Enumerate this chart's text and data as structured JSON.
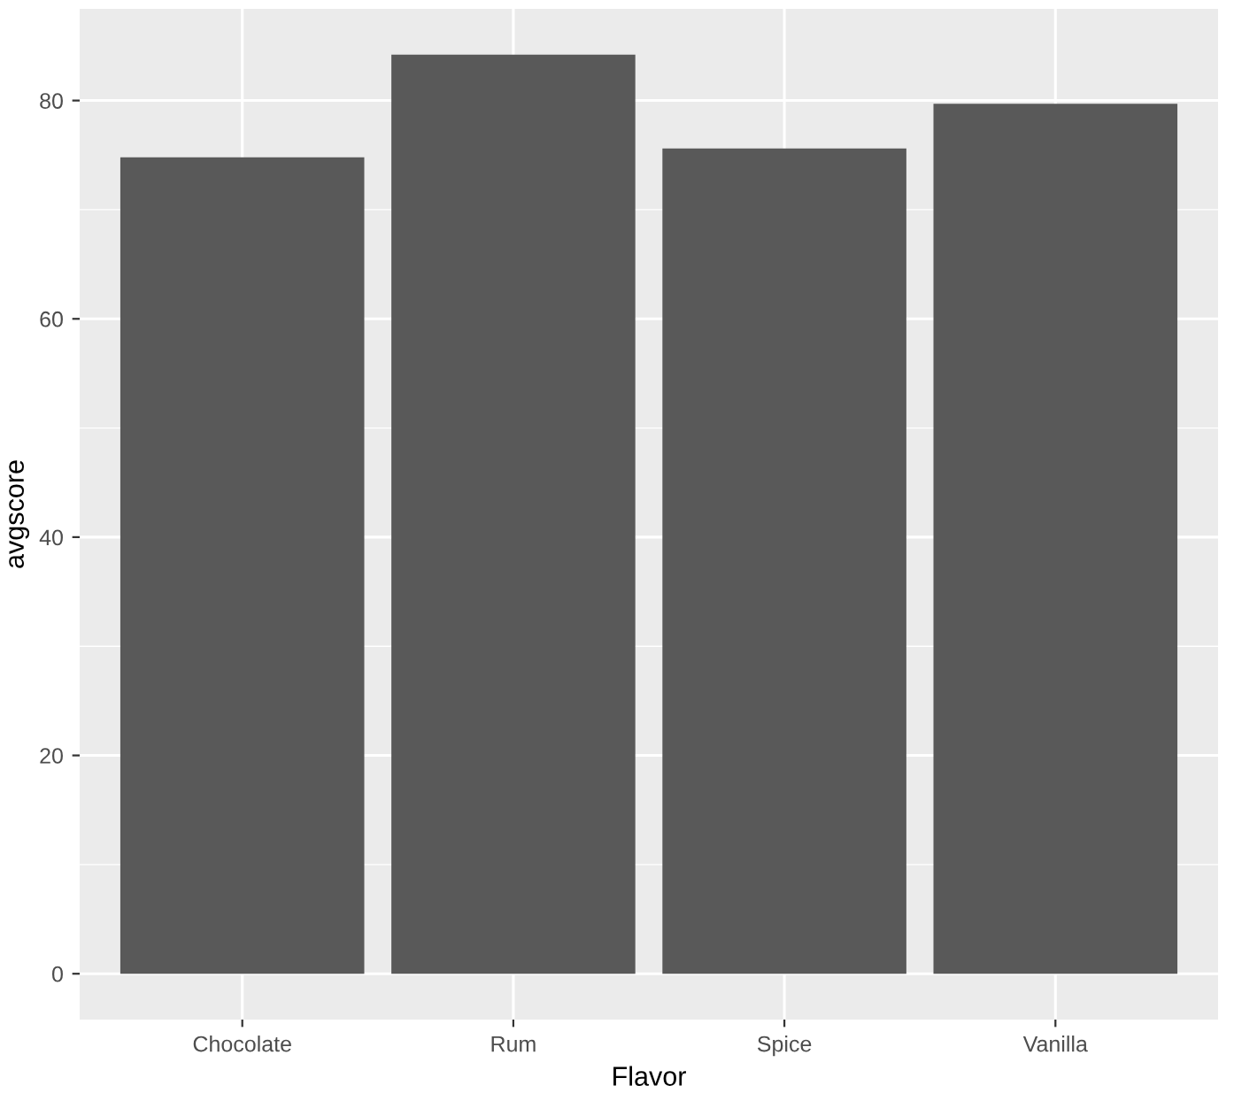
{
  "chart_data": {
    "type": "bar",
    "xlabel": "Flavor",
    "ylabel": "avgscore",
    "categories": [
      "Chocolate",
      "Rum",
      "Spice",
      "Vanilla"
    ],
    "values": [
      74.8,
      84.2,
      75.6,
      79.7
    ],
    "color": "#595959",
    "ylim": [
      -4.2,
      88.4
    ],
    "yticks": [
      0,
      20,
      40,
      60,
      80
    ],
    "grid": true
  }
}
